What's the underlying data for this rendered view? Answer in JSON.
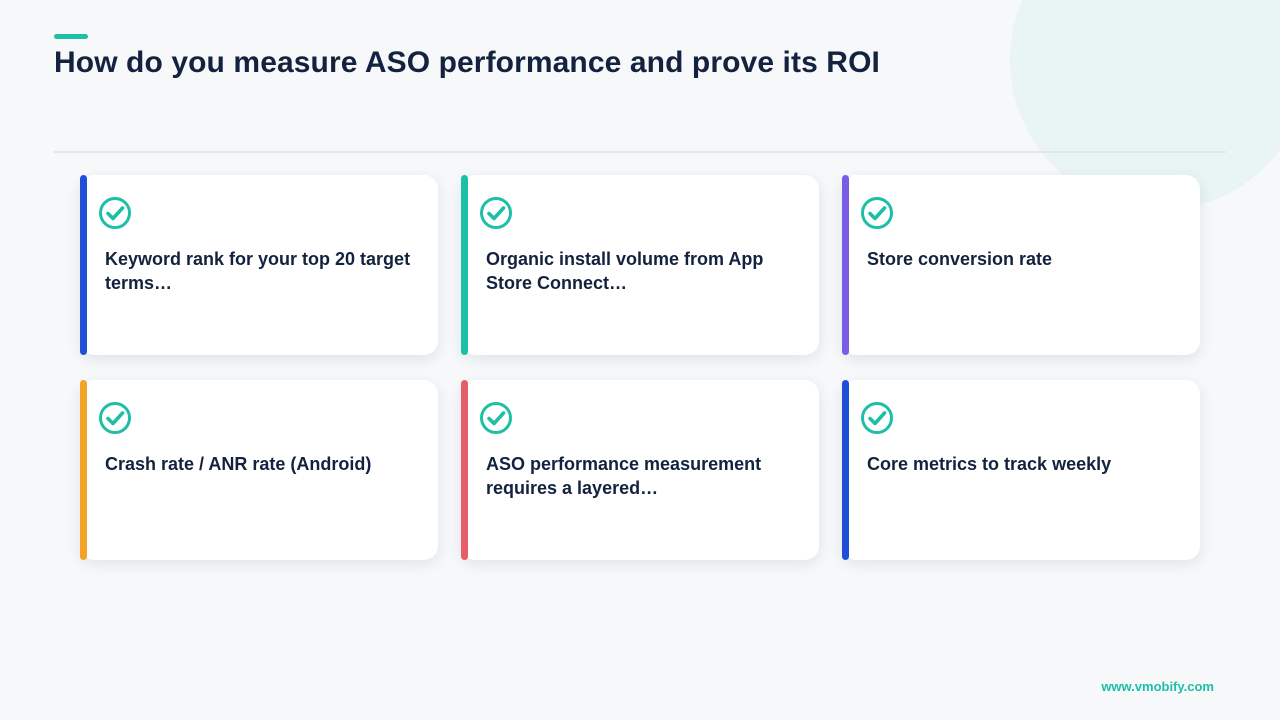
{
  "slide": {
    "title": "How do you measure ASO performance and prove its ROI",
    "footer": "www.vmobify.com",
    "colors": {
      "accent": "#1dbfa6",
      "title_text": "#13233f",
      "background": "#f6f8fa"
    }
  },
  "cards": [
    {
      "text": "Keyword rank for your top 20 target terms…",
      "stripe_color": "#1f4fd6",
      "icon": "check-circle-icon"
    },
    {
      "text": "Organic install volume from App Store Connect…",
      "stripe_color": "#1dbfa6",
      "icon": "check-circle-icon"
    },
    {
      "text": "Store conversion rate",
      "stripe_color": "#7b5ce6",
      "icon": "check-circle-icon"
    },
    {
      "text": "Crash rate / ANR rate (Android)",
      "stripe_color": "#f2a427",
      "icon": "check-circle-icon"
    },
    {
      "text": "ASO performance measurement requires a layered…",
      "stripe_color": "#e85d6a",
      "icon": "check-circle-icon"
    },
    {
      "text": "Core metrics to track weekly",
      "stripe_color": "#1f4fd6",
      "icon": "check-circle-icon"
    }
  ]
}
